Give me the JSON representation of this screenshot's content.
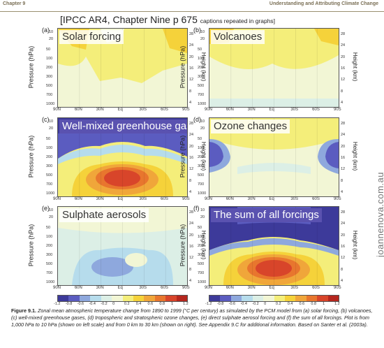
{
  "header": {
    "chapter": "Chapter 9",
    "running_title": "Understanding and Attributing Climate Change"
  },
  "source_note": {
    "main": "[IPCC AR4, Chapter Nine p 675",
    "small": "captions repeated in graphs]"
  },
  "axes": {
    "pressure_label": "Pressure (hPa)",
    "height_label": "Height (km)",
    "pressure_ticks": [
      "50",
      "100",
      "200",
      "300",
      "500",
      "700",
      "1000"
    ],
    "height_ticks": [
      "28",
      "24",
      "20",
      "16",
      "12",
      "8",
      "4"
    ],
    "top_ticks": [
      "10",
      "20"
    ],
    "lat_labels": [
      "90N",
      "60N",
      "30N",
      "Eq",
      "30S",
      "60S",
      "90S"
    ]
  },
  "panels": [
    {
      "letter": "(a)",
      "caption": "Solar forcing",
      "style": "light",
      "variant": "solar"
    },
    {
      "letter": "(b)",
      "caption": "Volcanoes",
      "style": "light",
      "variant": "volcano"
    },
    {
      "letter": "(c)",
      "caption": "Well-mixed greenhouse gases",
      "style": "dark",
      "variant": "ghg"
    },
    {
      "letter": "(d)",
      "caption": "Ozone changes",
      "style": "light",
      "variant": "ozone"
    },
    {
      "letter": "(e)",
      "caption": "Sulphate aerosols",
      "style": "light",
      "variant": "sulphate"
    },
    {
      "letter": "(f)",
      "caption": "The sum of all forcings",
      "style": "dark",
      "variant": "sum"
    }
  ],
  "colorbar": {
    "colors": [
      "#3d3a9a",
      "#5b5cc0",
      "#8ea8dd",
      "#b6dcec",
      "#dcefe6",
      "#f2f6d5",
      "#f4ee7a",
      "#f5d23a",
      "#f0a63a",
      "#e8762e",
      "#d8452a",
      "#b5261e"
    ],
    "labels": [
      "-1.2",
      "-0.8",
      "-0.6",
      "-0.4",
      "-0.2",
      "0",
      "0.2",
      "0.4",
      "0.6",
      "0.8",
      "1",
      "1.2"
    ]
  },
  "caption": {
    "label": "Figure 9.1.",
    "text": "Zonal mean atmospheric temperature change from 1890 to 1999 (°C per century) as simulated by the PCM model from (a) solar forcing, (b) volcanoes, (c) well-mixed greenhouse gases, (d) tropospheric and stratospheric ozone changes, (e) direct sulphate aerosol forcing and (f) the sum of all forcings. Plot is from 1,000 hPa to 10 hPa (shown on left scale) and from 0 km to 30 km (shown on right). See Appendix 9.C for additional information. Based on Santer et al. (2003a)."
  },
  "watermark": "joannenova.com.au"
}
